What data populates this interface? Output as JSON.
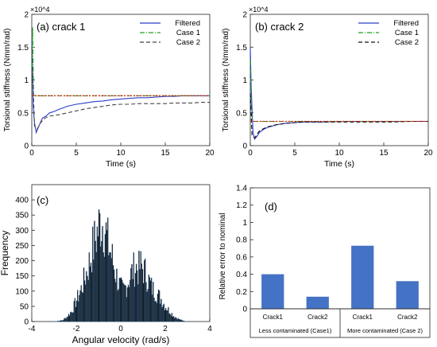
{
  "chart_data": [
    {
      "type": "line",
      "panel_label": "(a) crack 1",
      "xlabel": "Time (s)",
      "ylabel": "Torsional stiffness (Nmm/rad)",
      "y_multiplier": "×10^4",
      "xlim": [
        0,
        20
      ],
      "ylim": [
        0,
        2
      ],
      "xticks": [
        0,
        5,
        10,
        15,
        20
      ],
      "yticks": [
        0,
        0.5,
        1,
        1.5,
        2
      ],
      "legend_position": "top-right",
      "series": [
        {
          "name": "Filtered",
          "color": "#2b3cc8",
          "style": "solid",
          "x": [
            0,
            0.15,
            0.3,
            0.5,
            0.8,
            1.2,
            1.6,
            2,
            2.5,
            3,
            4,
            5,
            6,
            7,
            8,
            9,
            10,
            11,
            12,
            13,
            14,
            15,
            16,
            17,
            18,
            19,
            20
          ],
          "y": [
            1.6,
            0.6,
            0.35,
            0.2,
            0.3,
            0.42,
            0.45,
            0.5,
            0.52,
            0.55,
            0.6,
            0.63,
            0.65,
            0.67,
            0.68,
            0.7,
            0.71,
            0.72,
            0.73,
            0.73,
            0.74,
            0.75,
            0.75,
            0.76,
            0.76,
            0.76,
            0.76
          ]
        },
        {
          "name": "Case 1",
          "color": "#1aa31a",
          "style": "dash-dot",
          "x": [
            0,
            0.1,
            0.2,
            0.4,
            1,
            5,
            10,
            15,
            20
          ],
          "y": [
            1.2,
            1.8,
            0.76,
            0.76,
            0.76,
            0.76,
            0.76,
            0.76,
            0.76
          ]
        },
        {
          "name": "Case 2",
          "color": "#444444",
          "style": "dashed",
          "x": [
            0,
            0.3,
            0.6,
            1,
            1.5,
            2,
            2.5,
            3,
            4,
            5,
            6,
            7,
            8,
            9,
            10,
            11,
            12,
            13,
            14,
            15,
            16,
            17,
            18,
            19,
            20
          ],
          "y": [
            1.5,
            0.3,
            0.25,
            0.35,
            0.42,
            0.45,
            0.46,
            0.47,
            0.5,
            0.53,
            0.56,
            0.58,
            0.6,
            0.62,
            0.63,
            0.63,
            0.64,
            0.64,
            0.64,
            0.64,
            0.65,
            0.65,
            0.65,
            0.66,
            0.66
          ]
        },
        {
          "name": "",
          "color": "#e0201a",
          "style": "dotted",
          "x": [
            0,
            20
          ],
          "y": [
            0.76,
            0.76
          ]
        }
      ]
    },
    {
      "type": "line",
      "panel_label": "(b) crack 2",
      "xlabel": "Time (s)",
      "ylabel": "Torsional stiffness (Nmm/rad)",
      "y_multiplier": "×10^4",
      "xlim": [
        0,
        20
      ],
      "ylim": [
        0,
        2
      ],
      "xticks": [
        0,
        5,
        10,
        15,
        20
      ],
      "yticks": [
        0,
        0.5,
        1,
        1.5,
        2
      ],
      "legend_position": "top-right",
      "series": [
        {
          "name": "Filtered",
          "color": "#2b3cc8",
          "style": "solid",
          "x": [
            0,
            0.1,
            0.3,
            0.5,
            0.8,
            1,
            1.5,
            2,
            2.5,
            3,
            4,
            5,
            6,
            8,
            10,
            12,
            14,
            16,
            18,
            20
          ],
          "y": [
            1.5,
            0.9,
            0.2,
            0.1,
            0.15,
            0.2,
            0.25,
            0.28,
            0.3,
            0.32,
            0.34,
            0.35,
            0.36,
            0.36,
            0.37,
            0.37,
            0.37,
            0.37,
            0.37,
            0.37
          ]
        },
        {
          "name": "Case 1",
          "color": "#1aa31a",
          "style": "dash-dot",
          "x": [
            0,
            0.1,
            0.3,
            1,
            5,
            10,
            15,
            20
          ],
          "y": [
            1.3,
            0.5,
            0.37,
            0.37,
            0.37,
            0.37,
            0.37,
            0.37
          ]
        },
        {
          "name": "Case 2",
          "color": "#111111",
          "style": "dashed",
          "x": [
            0,
            0.2,
            0.5,
            0.8,
            1,
            1.5,
            2,
            3,
            4,
            5,
            6,
            8,
            10,
            12,
            14,
            16,
            18,
            20
          ],
          "y": [
            0.8,
            0.15,
            0.12,
            0.18,
            0.22,
            0.26,
            0.29,
            0.32,
            0.34,
            0.35,
            0.36,
            0.36,
            0.36,
            0.36,
            0.36,
            0.36,
            0.37,
            0.37
          ]
        },
        {
          "name": "",
          "color": "#e0201a",
          "style": "dotted",
          "x": [
            0,
            20
          ],
          "y": [
            0.37,
            0.37
          ]
        }
      ]
    },
    {
      "type": "bar",
      "subtype": "histogram",
      "panel_label": "(c)",
      "xlabel": "Angular velocity (rad/s)",
      "ylabel": "Frequency",
      "xlim": [
        -4,
        4
      ],
      "ylim": [
        0,
        450
      ],
      "xticks": [
        -4,
        -2,
        0,
        2,
        4
      ],
      "yticks": [
        0,
        50,
        100,
        150,
        200,
        250,
        300,
        350,
        400
      ],
      "bin_width": 0.04,
      "bar_color": "#0f0f0f",
      "edge_color": "#3a7ab8",
      "envelope_x": [
        -3.0,
        -2.6,
        -2.4,
        -2.2,
        -2.0,
        -1.8,
        -1.6,
        -1.5,
        -1.4,
        -1.3,
        -1.2,
        -1.1,
        -1.0,
        -0.9,
        -0.8,
        -0.7,
        -0.6,
        -0.5,
        -0.4,
        -0.3,
        -0.2,
        -0.1,
        0.0,
        0.1,
        0.2,
        0.3,
        0.4,
        0.5,
        0.6,
        0.7,
        0.8,
        0.9,
        1.0,
        1.1,
        1.2,
        1.3,
        1.4,
        1.6,
        1.8,
        2.0,
        2.2,
        2.4,
        2.6,
        2.8,
        3.0
      ],
      "envelope_y": [
        0,
        5,
        20,
        40,
        80,
        120,
        170,
        200,
        230,
        270,
        300,
        330,
        360,
        390,
        380,
        360,
        310,
        280,
        250,
        210,
        180,
        150,
        130,
        120,
        130,
        150,
        170,
        190,
        205,
        210,
        200,
        215,
        205,
        190,
        170,
        150,
        130,
        110,
        90,
        60,
        40,
        20,
        10,
        3,
        0
      ]
    },
    {
      "type": "bar",
      "panel_label": "(d)",
      "ylabel": "Relative error to nominal",
      "ylim": [
        0,
        1.4
      ],
      "yticks": [
        0,
        0.2,
        0.4,
        0.6,
        0.8,
        1,
        1.2,
        1.4
      ],
      "categories": [
        "Crack1",
        "Crack2",
        "Crack1",
        "Crack2"
      ],
      "values": [
        0.4,
        0.14,
        0.73,
        0.32
      ],
      "bar_color": "#4472c4",
      "groups": [
        {
          "label": "Less contaminated (Case1)",
          "span": [
            0,
            1
          ]
        },
        {
          "label": "More contaminated (Case 2)",
          "span": [
            2,
            3
          ]
        }
      ]
    }
  ]
}
